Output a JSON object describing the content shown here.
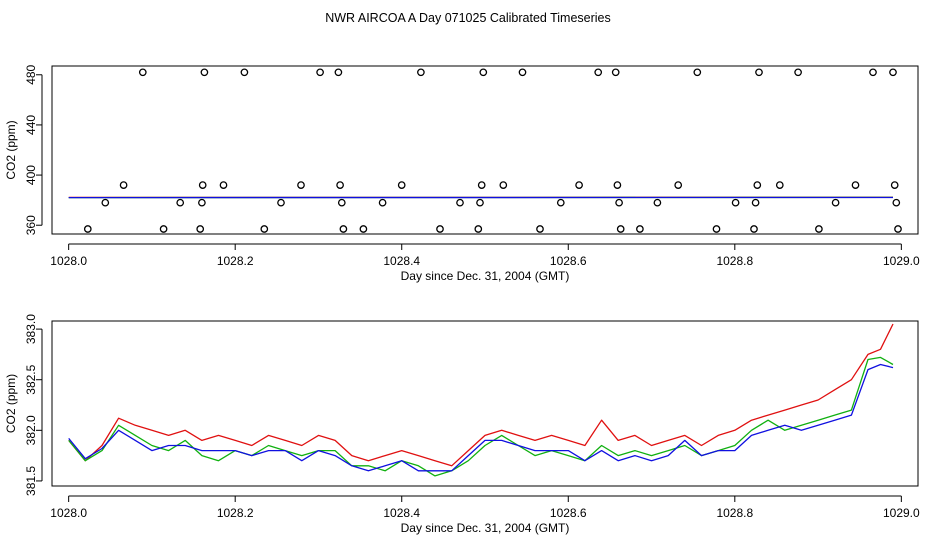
{
  "title": "NWR AIRCOA A  Day 071025  Calibrated Timeseries",
  "colors": {
    "red": "#e01010",
    "green": "#10b010",
    "blue": "#1010e0",
    "axis": "#000000"
  },
  "chart_data": [
    {
      "type": "scatter",
      "xlabel": "Day since Dec. 31, 2004 (GMT)",
      "ylabel": "CO2 (ppm)",
      "xlim": [
        1027.98,
        1029.02
      ],
      "ylim": [
        353,
        487
      ],
      "xticks": [
        1028.0,
        1028.2,
        1028.4,
        1028.6,
        1028.8,
        1029.0
      ],
      "xtick_labels": [
        "1028.0",
        "1028.2",
        "1028.4",
        "1028.6",
        "1028.8",
        "1029.0"
      ],
      "yticks": [
        360,
        400,
        440,
        480
      ],
      "ytick_labels": [
        "360",
        "400",
        "440",
        "480"
      ],
      "points": [
        [
          1028.023,
          357
        ],
        [
          1028.044,
          378
        ],
        [
          1028.066,
          392
        ],
        [
          1028.089,
          482
        ],
        [
          1028.114,
          357
        ],
        [
          1028.134,
          378
        ],
        [
          1028.158,
          357
        ],
        [
          1028.16,
          378
        ],
        [
          1028.161,
          392
        ],
        [
          1028.163,
          482
        ],
        [
          1028.186,
          392
        ],
        [
          1028.211,
          482
        ],
        [
          1028.235,
          357
        ],
        [
          1028.255,
          378
        ],
        [
          1028.279,
          392
        ],
        [
          1028.302,
          482
        ],
        [
          1028.324,
          482
        ],
        [
          1028.326,
          392
        ],
        [
          1028.328,
          378
        ],
        [
          1028.33,
          357
        ],
        [
          1028.354,
          357
        ],
        [
          1028.377,
          378
        ],
        [
          1028.4,
          392
        ],
        [
          1028.423,
          482
        ],
        [
          1028.446,
          357
        ],
        [
          1028.47,
          378
        ],
        [
          1028.492,
          357
        ],
        [
          1028.494,
          378
        ],
        [
          1028.496,
          392
        ],
        [
          1028.498,
          482
        ],
        [
          1028.522,
          392
        ],
        [
          1028.545,
          482
        ],
        [
          1028.566,
          357
        ],
        [
          1028.591,
          378
        ],
        [
          1028.613,
          392
        ],
        [
          1028.636,
          482
        ],
        [
          1028.657,
          482
        ],
        [
          1028.659,
          392
        ],
        [
          1028.661,
          378
        ],
        [
          1028.663,
          357
        ],
        [
          1028.686,
          357
        ],
        [
          1028.707,
          378
        ],
        [
          1028.732,
          392
        ],
        [
          1028.755,
          482
        ],
        [
          1028.778,
          357
        ],
        [
          1028.801,
          378
        ],
        [
          1028.823,
          357
        ],
        [
          1028.825,
          378
        ],
        [
          1028.827,
          392
        ],
        [
          1028.829,
          482
        ],
        [
          1028.854,
          392
        ],
        [
          1028.876,
          482
        ],
        [
          1028.901,
          357
        ],
        [
          1028.921,
          378
        ],
        [
          1028.945,
          392
        ],
        [
          1028.966,
          482
        ],
        [
          1028.99,
          482
        ],
        [
          1028.992,
          392
        ],
        [
          1028.994,
          378
        ],
        [
          1028.996,
          357
        ]
      ],
      "series": [
        {
          "name": "red",
          "x": [
            1028.0,
            1028.99
          ],
          "y": [
            382.2,
            382.3
          ]
        },
        {
          "name": "green",
          "x": [
            1028.0,
            1028.99
          ],
          "y": [
            382.0,
            382.2
          ]
        },
        {
          "name": "blue",
          "x": [
            1028.0,
            1028.99
          ],
          "y": [
            382.0,
            382.1
          ]
        }
      ]
    },
    {
      "type": "line",
      "xlabel": "Day since Dec. 31, 2004 (GMT)",
      "ylabel": "CO2 (ppm)",
      "xlim": [
        1027.98,
        1029.02
      ],
      "ylim": [
        381.45,
        383.08
      ],
      "xticks": [
        1028.0,
        1028.2,
        1028.4,
        1028.6,
        1028.8,
        1029.0
      ],
      "xtick_labels": [
        "1028.0",
        "1028.2",
        "1028.4",
        "1028.6",
        "1028.8",
        "1029.0"
      ],
      "yticks": [
        381.5,
        382.0,
        382.5,
        383.0
      ],
      "ytick_labels": [
        "381.5",
        "382.0",
        "382.5",
        "383.0"
      ],
      "series": [
        {
          "name": "red",
          "x": [
            1028.0,
            1028.02,
            1028.04,
            1028.06,
            1028.08,
            1028.1,
            1028.12,
            1028.14,
            1028.16,
            1028.18,
            1028.2,
            1028.22,
            1028.24,
            1028.26,
            1028.28,
            1028.3,
            1028.32,
            1028.34,
            1028.36,
            1028.38,
            1028.4,
            1028.42,
            1028.44,
            1028.46,
            1028.48,
            1028.5,
            1028.52,
            1028.54,
            1028.56,
            1028.58,
            1028.6,
            1028.62,
            1028.64,
            1028.66,
            1028.68,
            1028.7,
            1028.72,
            1028.74,
            1028.76,
            1028.78,
            1028.8,
            1028.82,
            1028.84,
            1028.86,
            1028.88,
            1028.9,
            1028.92,
            1028.94,
            1028.96,
            1028.975,
            1028.99
          ],
          "y": [
            381.9,
            381.7,
            381.85,
            382.12,
            382.05,
            382.0,
            381.95,
            382.0,
            381.9,
            381.95,
            381.9,
            381.85,
            381.95,
            381.9,
            381.85,
            381.95,
            381.9,
            381.75,
            381.7,
            381.75,
            381.8,
            381.75,
            381.7,
            381.65,
            381.8,
            381.95,
            382.0,
            381.95,
            381.9,
            381.95,
            381.9,
            381.85,
            382.1,
            381.9,
            381.95,
            381.85,
            381.9,
            381.95,
            381.85,
            381.95,
            382.0,
            382.1,
            382.15,
            382.2,
            382.25,
            382.3,
            382.4,
            382.5,
            382.75,
            382.8,
            383.05
          ]
        },
        {
          "name": "green",
          "x": [
            1028.0,
            1028.02,
            1028.04,
            1028.06,
            1028.08,
            1028.1,
            1028.12,
            1028.14,
            1028.16,
            1028.18,
            1028.2,
            1028.22,
            1028.24,
            1028.26,
            1028.28,
            1028.3,
            1028.32,
            1028.34,
            1028.36,
            1028.38,
            1028.4,
            1028.42,
            1028.44,
            1028.46,
            1028.48,
            1028.5,
            1028.52,
            1028.54,
            1028.56,
            1028.58,
            1028.6,
            1028.62,
            1028.64,
            1028.66,
            1028.68,
            1028.7,
            1028.72,
            1028.74,
            1028.76,
            1028.78,
            1028.8,
            1028.82,
            1028.84,
            1028.86,
            1028.88,
            1028.9,
            1028.92,
            1028.94,
            1028.96,
            1028.975,
            1028.99
          ],
          "y": [
            381.9,
            381.7,
            381.8,
            382.05,
            381.95,
            381.85,
            381.8,
            381.9,
            381.75,
            381.7,
            381.8,
            381.75,
            381.85,
            381.8,
            381.75,
            381.8,
            381.8,
            381.65,
            381.65,
            381.6,
            381.7,
            381.65,
            381.55,
            381.6,
            381.7,
            381.85,
            381.95,
            381.85,
            381.75,
            381.8,
            381.75,
            381.7,
            381.85,
            381.75,
            381.8,
            381.75,
            381.8,
            381.85,
            381.75,
            381.8,
            381.85,
            382.0,
            382.1,
            382.0,
            382.05,
            382.1,
            382.15,
            382.2,
            382.7,
            382.72,
            382.65
          ]
        },
        {
          "name": "blue",
          "x": [
            1028.0,
            1028.02,
            1028.04,
            1028.06,
            1028.08,
            1028.1,
            1028.12,
            1028.14,
            1028.16,
            1028.18,
            1028.2,
            1028.22,
            1028.24,
            1028.26,
            1028.28,
            1028.3,
            1028.32,
            1028.34,
            1028.36,
            1028.38,
            1028.4,
            1028.42,
            1028.44,
            1028.46,
            1028.48,
            1028.5,
            1028.52,
            1028.54,
            1028.56,
            1028.58,
            1028.6,
            1028.62,
            1028.64,
            1028.66,
            1028.68,
            1028.7,
            1028.72,
            1028.74,
            1028.76,
            1028.78,
            1028.8,
            1028.82,
            1028.84,
            1028.86,
            1028.88,
            1028.9,
            1028.92,
            1028.94,
            1028.96,
            1028.975,
            1028.99
          ],
          "y": [
            381.92,
            381.72,
            381.82,
            382.0,
            381.9,
            381.8,
            381.85,
            381.85,
            381.8,
            381.8,
            381.8,
            381.75,
            381.8,
            381.8,
            381.7,
            381.8,
            381.75,
            381.65,
            381.6,
            381.65,
            381.7,
            381.6,
            381.6,
            381.6,
            381.75,
            381.9,
            381.9,
            381.85,
            381.8,
            381.8,
            381.8,
            381.7,
            381.8,
            381.7,
            381.75,
            381.7,
            381.75,
            381.9,
            381.75,
            381.8,
            381.8,
            381.95,
            382.0,
            382.05,
            382.0,
            382.05,
            382.1,
            382.15,
            382.6,
            382.65,
            382.62
          ]
        }
      ]
    }
  ]
}
